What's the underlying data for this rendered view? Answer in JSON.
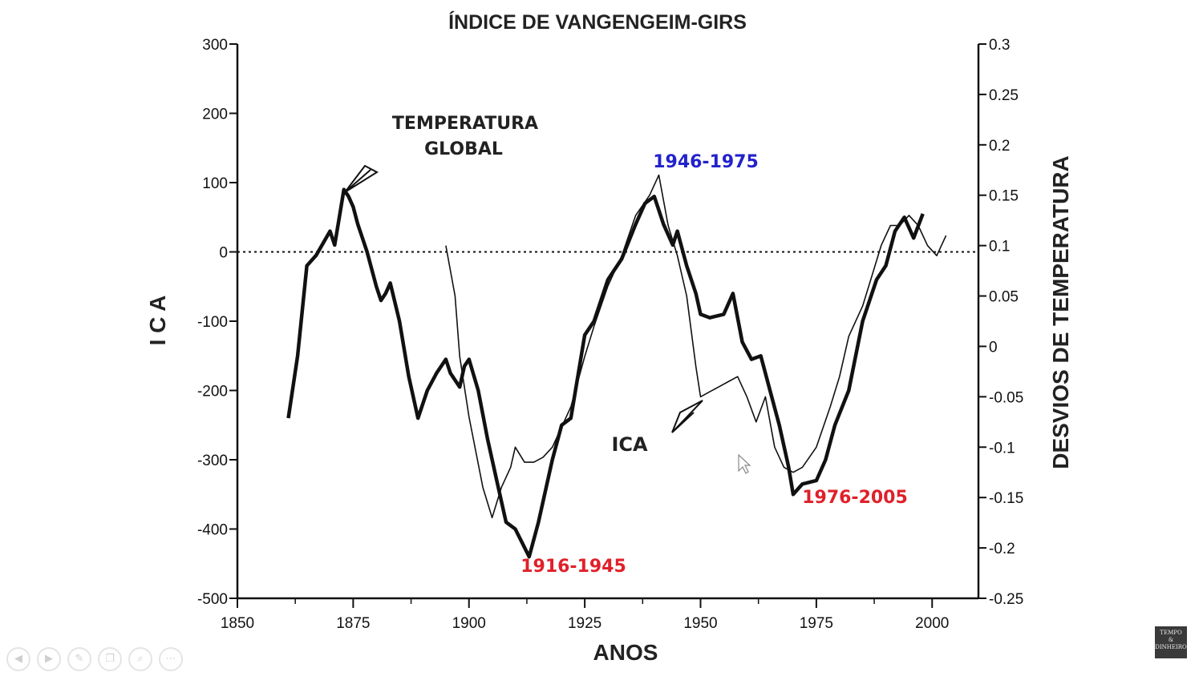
{
  "chart_data": {
    "type": "line",
    "title": "ÍNDICE DE VANGENGEIM-GIRS",
    "xlabel": "ANOS",
    "ylabel_left": "I C A",
    "ylabel_right": "DESVIOS DE TEMPERATURA",
    "xlim": [
      1850,
      2010
    ],
    "ylim_left": [
      -500,
      300
    ],
    "ylim_right": [
      -0.25,
      0.3
    ],
    "x_ticks": [
      1850,
      1875,
      1900,
      1925,
      1950,
      1975,
      2000
    ],
    "y_ticks_left": [
      300,
      200,
      100,
      0,
      -100,
      -200,
      -300,
      -400,
      -500
    ],
    "y_ticks_right": [
      0.3,
      0.25,
      0.2,
      0.15,
      0.1,
      0.05,
      0,
      -0.05,
      -0.1,
      -0.15,
      -0.2,
      -0.25
    ],
    "y_tick_labels_right": [
      "0.3",
      "0.25",
      "0.2",
      "0.15",
      "0.1",
      "0.05",
      "0",
      "-0.05",
      "-0.1",
      "-0.15",
      "-0.2",
      "-0.25"
    ],
    "zero_line": 0,
    "series": [
      {
        "axis": "left",
        "style": "thick",
        "x": [
          1861,
          1863,
          1865,
          1867,
          1870,
          1871,
          1872,
          1873,
          1874,
          1875,
          1876,
          1877,
          1878,
          1880,
          1881,
          1882,
          1883,
          1885,
          1887,
          1889,
          1891,
          1893,
          1895,
          1896,
          1898,
          1899,
          1900,
          1902,
          1904,
          1906,
          1908,
          1910,
          1913,
          1915,
          1918,
          1920,
          1922,
          1925,
          1927,
          1930,
          1933,
          1936,
          1938,
          1940,
          1942,
          1944,
          1945,
          1947,
          1949,
          1950,
          1952,
          1955,
          1957,
          1959,
          1961,
          1963,
          1965,
          1967,
          1969,
          1970,
          1972,
          1975,
          1977,
          1979,
          1982,
          1985,
          1987,
          1988,
          1990,
          1992,
          1994,
          1996,
          1998
        ],
        "y": [
          -240,
          -150,
          -20,
          -5,
          30,
          10,
          50,
          90,
          80,
          65,
          40,
          20,
          0,
          -50,
          -70,
          -60,
          -45,
          -100,
          -180,
          -240,
          -200,
          -175,
          -155,
          -175,
          -195,
          -165,
          -155,
          -200,
          -270,
          -330,
          -390,
          -400,
          -440,
          -390,
          -300,
          -250,
          -240,
          -120,
          -100,
          -40,
          -10,
          40,
          70,
          80,
          40,
          10,
          30,
          -20,
          -60,
          -90,
          -95,
          -90,
          -60,
          -130,
          -155,
          -150,
          -200,
          -250,
          -310,
          -350,
          -335,
          -330,
          -300,
          -250,
          -200,
          -100,
          -60,
          -40,
          -20,
          30,
          50,
          20,
          55
        ]
      },
      {
        "axis": "right",
        "style": "thin",
        "x": [
          1895,
          1897,
          1898,
          1900,
          1903,
          1905,
          1907,
          1909,
          1910,
          1912,
          1914,
          1916,
          1918,
          1920,
          1922,
          1925,
          1927,
          1930,
          1933,
          1936,
          1939,
          1941,
          1943,
          1945,
          1947,
          1949,
          1950,
          1952,
          1954,
          1956,
          1958,
          1960,
          1962,
          1964,
          1966,
          1968,
          1970,
          1972,
          1975,
          1978,
          1980,
          1982,
          1985,
          1987,
          1989,
          1991,
          1993,
          1995,
          1997,
          1999,
          2001,
          2003
        ],
        "y": [
          0.1,
          0.05,
          -0.01,
          -0.07,
          -0.14,
          -0.17,
          -0.14,
          -0.12,
          -0.1,
          -0.115,
          -0.115,
          -0.11,
          -0.1,
          -0.08,
          -0.06,
          -0.01,
          0.02,
          0.06,
          0.09,
          0.13,
          0.15,
          0.17,
          0.12,
          0.09,
          0.05,
          -0.02,
          -0.05,
          -0.045,
          -0.04,
          -0.035,
          -0.03,
          -0.05,
          -0.075,
          -0.05,
          -0.1,
          -0.12,
          -0.125,
          -0.12,
          -0.1,
          -0.06,
          -0.03,
          0.01,
          0.04,
          0.07,
          0.1,
          0.12,
          0.12,
          0.13,
          0.12,
          0.1,
          0.09,
          0.11
        ]
      }
    ],
    "annotations": [
      {
        "text": "1946-1975",
        "color": "#2222cc"
      },
      {
        "text": "1916-1945",
        "color": "#e0202a"
      },
      {
        "text": "1976-2005",
        "color": "#e0202a"
      },
      {
        "text": "TEMPERATURA",
        "color": "#222222"
      },
      {
        "text": "GLOBAL",
        "color": "#222222"
      },
      {
        "text": "ICA",
        "color": "#222222"
      }
    ]
  },
  "colors": {
    "line": "#111111",
    "blue_label": "#2222cc",
    "red_label": "#e0202a"
  },
  "footer_icons": [
    "arrow-left-icon",
    "arrow-right-icon",
    "pen-icon",
    "copy-icon",
    "zoom-icon",
    "more-icon"
  ],
  "logo": {
    "line1": "TEMPO",
    "line2": "&",
    "line3": "DINHEIRO"
  }
}
